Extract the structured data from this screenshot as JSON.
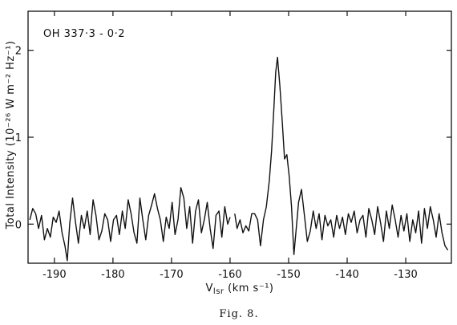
{
  "chart_data": {
    "type": "line",
    "title": "OH 337·3 - 0·2",
    "xlabel": {
      "main": "V",
      "sub": "lsr",
      "rest": " (km s⁻¹)"
    },
    "ylabel": "Total Intensity (10⁻²⁶ W m⁻² Hz⁻¹)",
    "caption": "Fig. 8.",
    "xlim": [
      -194.5,
      -122.2
    ],
    "ylim": [
      -0.45,
      2.45
    ],
    "xticks": [
      -190,
      -180,
      -170,
      -160,
      -150,
      -140,
      -130
    ],
    "xtick_labels": [
      "-190",
      "-180",
      "-170",
      "-160",
      "-150",
      "-140",
      "-130"
    ],
    "yticks": [
      0,
      1,
      2
    ],
    "ytick_labels": [
      "0",
      "1",
      "2"
    ],
    "grid": false,
    "series": [
      {
        "segments": [
          [
            [
              -194.2,
              0.05
            ],
            [
              -193.7,
              0.18
            ],
            [
              -193.2,
              0.12
            ],
            [
              -192.7,
              -0.05
            ],
            [
              -192.2,
              0.1
            ],
            [
              -191.7,
              -0.18
            ],
            [
              -191.2,
              -0.05
            ],
            [
              -190.7,
              -0.15
            ],
            [
              -190.2,
              0.08
            ],
            [
              -189.7,
              0.02
            ],
            [
              -189.2,
              0.15
            ],
            [
              -188.7,
              -0.1
            ],
            [
              -188.2,
              -0.25
            ],
            [
              -187.8,
              -0.42
            ],
            [
              -187.4,
              0.0
            ],
            [
              -186.9,
              0.3
            ],
            [
              -186.4,
              0.02
            ],
            [
              -185.9,
              -0.22
            ],
            [
              -185.4,
              0.1
            ],
            [
              -184.9,
              -0.05
            ],
            [
              -184.4,
              0.15
            ],
            [
              -183.9,
              -0.12
            ],
            [
              -183.4,
              0.28
            ],
            [
              -182.9,
              0.1
            ],
            [
              -182.4,
              -0.18
            ],
            [
              -181.9,
              -0.08
            ],
            [
              -181.4,
              0.12
            ],
            [
              -180.9,
              0.05
            ],
            [
              -180.4,
              -0.2
            ],
            [
              -179.9,
              0.05
            ],
            [
              -179.4,
              0.1
            ],
            [
              -178.9,
              -0.12
            ],
            [
              -178.4,
              0.15
            ],
            [
              -177.9,
              -0.05
            ],
            [
              -177.4,
              0.28
            ],
            [
              -176.9,
              0.12
            ],
            [
              -176.4,
              -0.1
            ],
            [
              -175.9,
              -0.22
            ],
            [
              -175.4,
              0.3
            ],
            [
              -174.9,
              0.05
            ],
            [
              -174.4,
              -0.18
            ],
            [
              -173.9,
              0.1
            ],
            [
              -173.4,
              0.22
            ],
            [
              -172.9,
              0.35
            ],
            [
              -172.4,
              0.18
            ],
            [
              -171.9,
              0.05
            ],
            [
              -171.4,
              -0.2
            ],
            [
              -170.9,
              0.08
            ],
            [
              -170.4,
              -0.05
            ],
            [
              -169.9,
              0.25
            ],
            [
              -169.4,
              -0.12
            ],
            [
              -168.9,
              0.05
            ],
            [
              -168.4,
              0.42
            ],
            [
              -167.9,
              0.3
            ],
            [
              -167.4,
              -0.05
            ],
            [
              -166.9,
              0.2
            ],
            [
              -166.4,
              -0.22
            ],
            [
              -165.9,
              0.15
            ],
            [
              -165.4,
              0.28
            ],
            [
              -164.9,
              -0.1
            ],
            [
              -164.4,
              0.05
            ],
            [
              -163.9,
              0.25
            ],
            [
              -163.4,
              -0.05
            ],
            [
              -162.9,
              -0.28
            ],
            [
              -162.4,
              0.1
            ],
            [
              -161.9,
              0.15
            ],
            [
              -161.4,
              -0.15
            ],
            [
              -160.9,
              0.2
            ],
            [
              -160.4,
              0.0
            ],
            [
              -160.0,
              0.08
            ]
          ],
          [
            [
              -159.2,
              0.12
            ],
            [
              -158.8,
              -0.05
            ],
            [
              -158.3,
              0.05
            ],
            [
              -157.8,
              -0.1
            ],
            [
              -157.3,
              -0.02
            ],
            [
              -156.8,
              -0.08
            ],
            [
              -156.3,
              0.12
            ],
            [
              -155.8,
              0.12
            ],
            [
              -155.3,
              0.05
            ],
            [
              -154.8,
              -0.25
            ],
            [
              -154.3,
              0.05
            ],
            [
              -153.8,
              0.2
            ],
            [
              -153.3,
              0.5
            ],
            [
              -152.9,
              0.85
            ],
            [
              -152.5,
              1.35
            ],
            [
              -152.2,
              1.75
            ],
            [
              -151.9,
              1.92
            ],
            [
              -151.5,
              1.6
            ],
            [
              -151.1,
              1.2
            ],
            [
              -150.7,
              0.75
            ],
            [
              -150.3,
              0.8
            ],
            [
              -149.9,
              0.55
            ],
            [
              -149.5,
              0.2
            ],
            [
              -149.1,
              -0.35
            ],
            [
              -148.7,
              -0.05
            ],
            [
              -148.3,
              0.25
            ],
            [
              -147.8,
              0.4
            ],
            [
              -147.3,
              0.1
            ],
            [
              -146.8,
              -0.2
            ],
            [
              -146.3,
              -0.08
            ],
            [
              -145.8,
              0.15
            ],
            [
              -145.3,
              -0.05
            ],
            [
              -144.8,
              0.12
            ],
            [
              -144.3,
              -0.18
            ],
            [
              -143.8,
              0.1
            ],
            [
              -143.3,
              -0.02
            ],
            [
              -142.8,
              0.05
            ],
            [
              -142.3,
              -0.15
            ],
            [
              -141.8,
              0.1
            ],
            [
              -141.3,
              -0.05
            ],
            [
              -140.8,
              0.08
            ],
            [
              -140.3,
              -0.12
            ],
            [
              -139.8,
              0.12
            ],
            [
              -139.3,
              0.02
            ],
            [
              -138.8,
              0.15
            ],
            [
              -138.3,
              -0.1
            ],
            [
              -137.8,
              0.05
            ],
            [
              -137.3,
              0.1
            ],
            [
              -136.8,
              -0.15
            ],
            [
              -136.3,
              0.18
            ],
            [
              -135.8,
              0.05
            ],
            [
              -135.3,
              -0.12
            ],
            [
              -134.8,
              0.2
            ],
            [
              -134.3,
              0.02
            ],
            [
              -133.8,
              -0.2
            ],
            [
              -133.3,
              0.15
            ],
            [
              -132.8,
              -0.05
            ],
            [
              -132.3,
              0.22
            ],
            [
              -131.8,
              0.05
            ],
            [
              -131.3,
              -0.15
            ],
            [
              -130.8,
              0.1
            ],
            [
              -130.3,
              -0.08
            ],
            [
              -129.8,
              0.12
            ],
            [
              -129.3,
              -0.2
            ],
            [
              -128.8,
              0.05
            ],
            [
              -128.3,
              -0.1
            ],
            [
              -127.8,
              0.15
            ],
            [
              -127.3,
              -0.22
            ],
            [
              -126.8,
              0.18
            ],
            [
              -126.3,
              -0.05
            ],
            [
              -125.8,
              0.2
            ],
            [
              -125.3,
              0.05
            ],
            [
              -124.8,
              -0.15
            ],
            [
              -124.3,
              0.12
            ],
            [
              -123.8,
              -0.1
            ],
            [
              -123.3,
              -0.25
            ],
            [
              -122.8,
              -0.3
            ]
          ]
        ]
      }
    ]
  }
}
